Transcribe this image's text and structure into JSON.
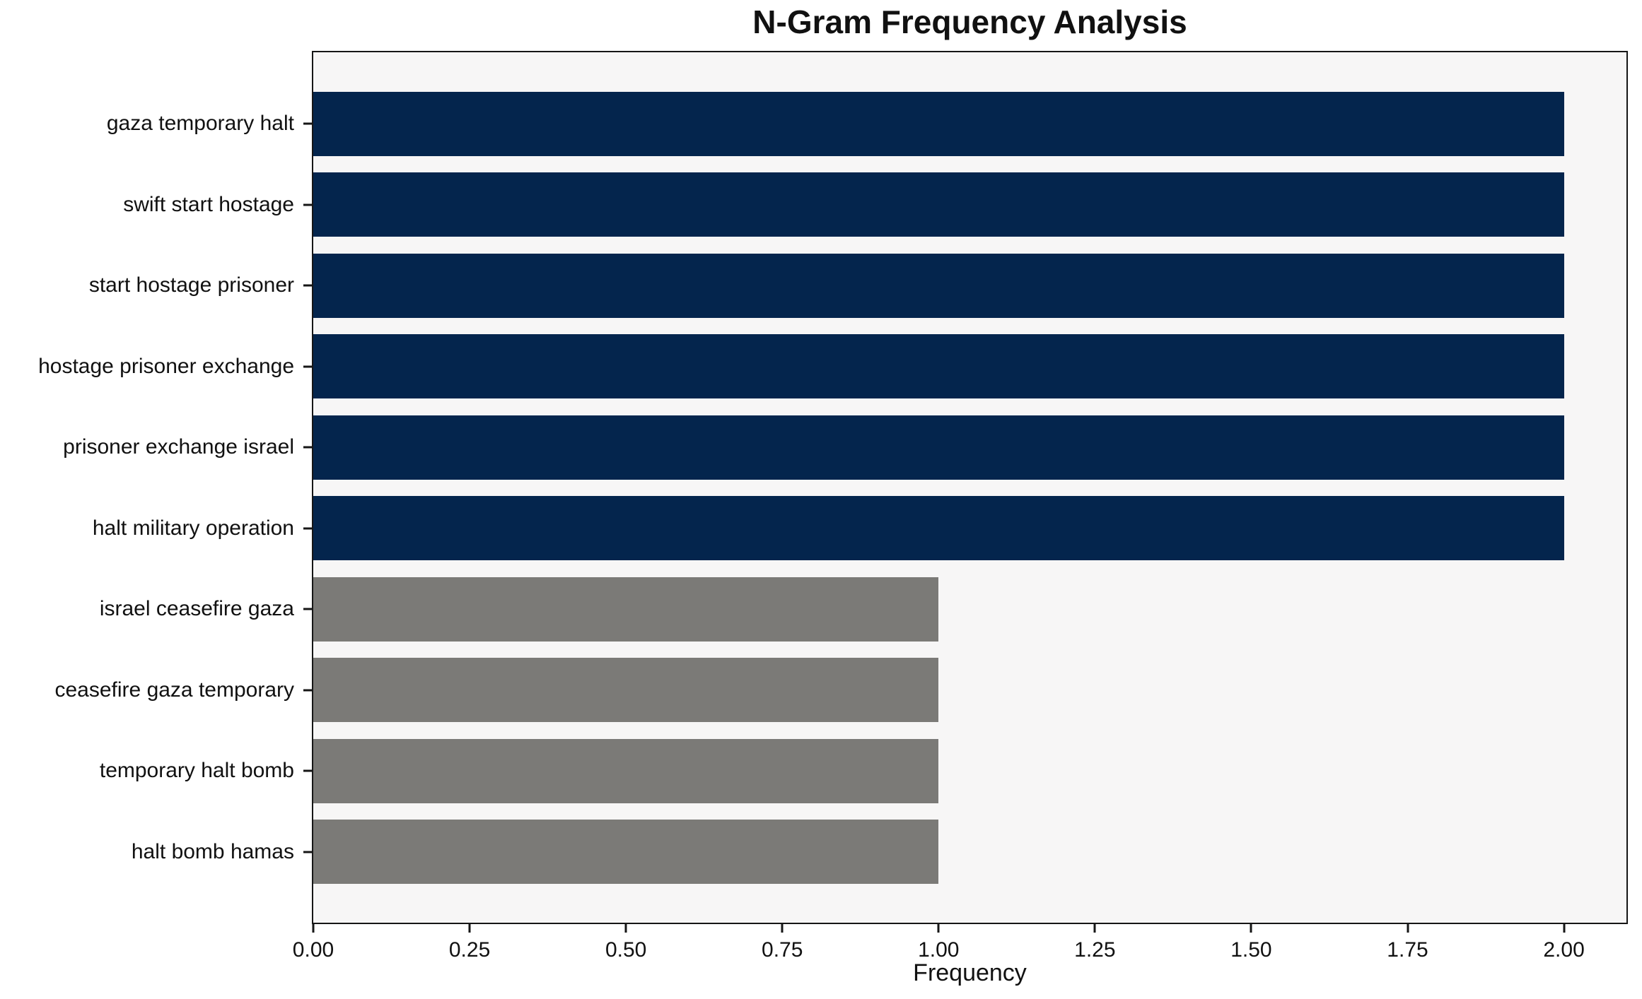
{
  "chart_data": {
    "type": "bar",
    "orientation": "horizontal",
    "title": "N-Gram Frequency Analysis",
    "xlabel": "Frequency",
    "ylabel": "",
    "categories": [
      "gaza temporary halt",
      "swift start hostage",
      "start hostage prisoner",
      "hostage prisoner exchange",
      "prisoner exchange israel",
      "halt military operation",
      "israel ceasefire gaza",
      "ceasefire gaza temporary",
      "temporary halt bomb",
      "halt bomb hamas"
    ],
    "values": [
      2,
      2,
      2,
      2,
      2,
      2,
      1,
      1,
      1,
      1
    ],
    "bar_colors": [
      "#04254d",
      "#04254d",
      "#04254d",
      "#04254d",
      "#04254d",
      "#04254d",
      "#7b7a77",
      "#7b7a77",
      "#7b7a77",
      "#7b7a77"
    ],
    "xlim": [
      0,
      2.1
    ],
    "xticks": [
      0,
      0.25,
      0.5,
      0.75,
      1,
      1.25,
      1.5,
      1.75,
      2
    ],
    "xtick_labels": [
      "0.00",
      "0.25",
      "0.50",
      "0.75",
      "1.00",
      "1.25",
      "1.50",
      "1.75",
      "2.00"
    ],
    "grid": false,
    "legend_position": "none",
    "colors": {
      "bar_high": "#04254d",
      "bar_low": "#7b7a77",
      "plot_background": "#f7f6f6",
      "figure_background": "#ffffff",
      "spine": "#161616",
      "text": "#111111"
    }
  }
}
